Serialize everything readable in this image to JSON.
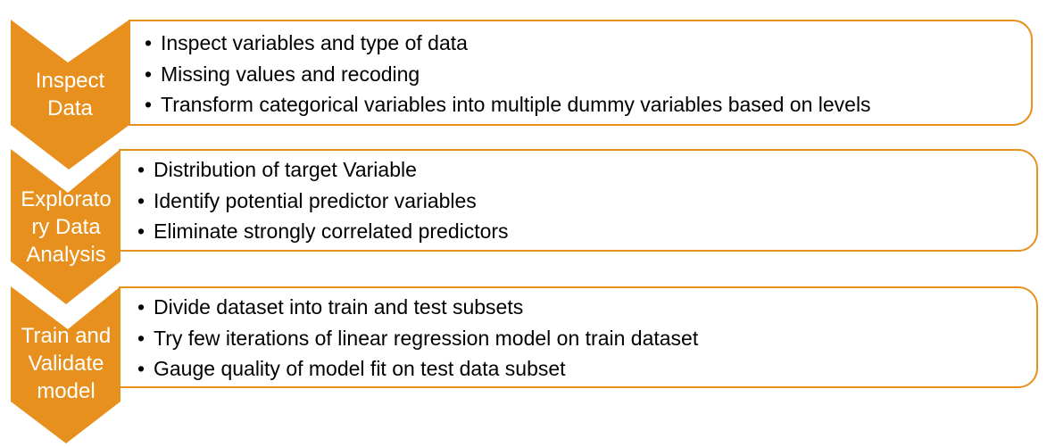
{
  "colors": {
    "accent": "#E8901E",
    "text": "#000000",
    "label_text": "#FFFFFF",
    "box_fill": "#FFFFFF"
  },
  "steps": [
    {
      "label": "Inspect\nData",
      "bullets": [
        "Inspect variables and type of data",
        "Missing values and recoding",
        "Transform categorical variables into multiple dummy variables based on levels"
      ]
    },
    {
      "label": "Explorato\nry Data\nAnalysis",
      "bullets": [
        "Distribution of target Variable",
        "Identify potential predictor variables",
        "Eliminate strongly correlated predictors"
      ]
    },
    {
      "label": "Train and\nValidate\nmodel",
      "bullets": [
        "Divide dataset into train and test subsets",
        "Try few iterations of linear regression model on train dataset",
        "Gauge quality of model fit on test data subset"
      ]
    }
  ]
}
